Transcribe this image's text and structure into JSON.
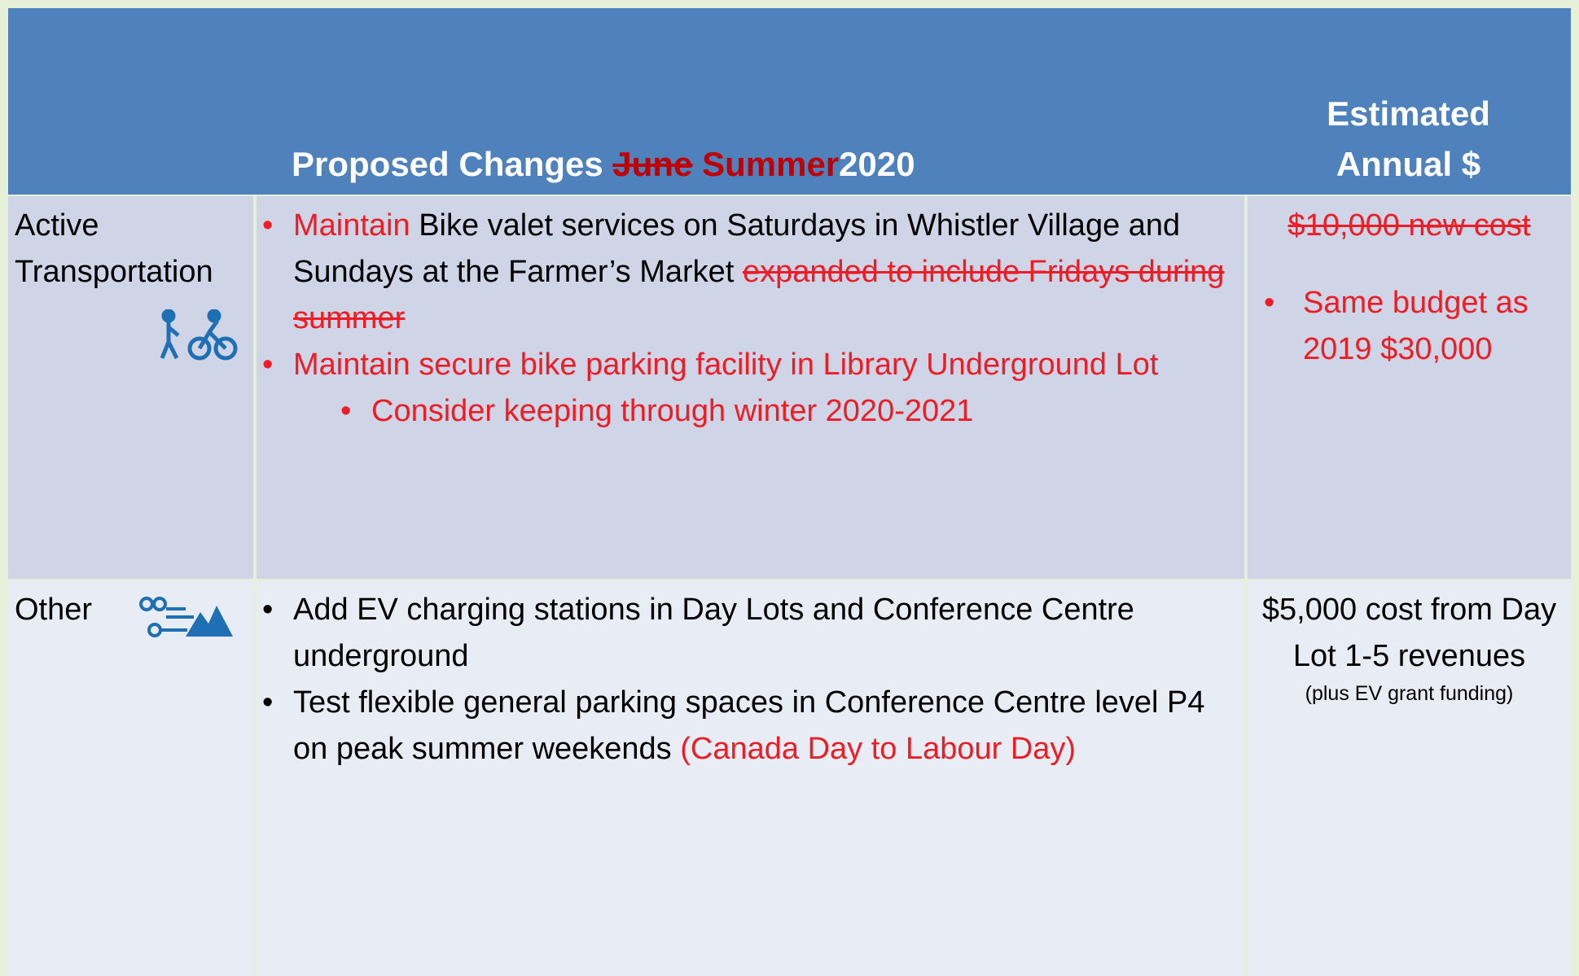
{
  "header": {
    "columns": [
      {
        "segments": [
          {
            "text": "Proposed Changes ",
            "color": "#ffffff",
            "strike": false
          },
          {
            "text": "June",
            "color": "#c00000",
            "strike": true
          },
          {
            "text": " Summer",
            "color": "#c00000",
            "strike": false
          },
          {
            "text": "2020",
            "color": "#ffffff",
            "strike": false
          }
        ]
      },
      {
        "segments": [
          {
            "text": "Estimated Annual $",
            "color": "#ffffff",
            "strike": false
          }
        ]
      }
    ]
  },
  "rows": [
    {
      "category": "Active Transportation",
      "bullets": [
        {
          "level": 1,
          "segments": [
            {
              "text": "Maintain",
              "color": "#ee1c25",
              "strike": false
            },
            {
              "text": " Bike valet services on Saturdays in Whistler Village and Sundays at the Farmer’s Market ",
              "color": "#000000",
              "strike": false
            },
            {
              "text": "expanded to include Fridays during summer",
              "color": "#ee1c25",
              "strike": true
            }
          ]
        },
        {
          "level": 1,
          "segments": [
            {
              "text": "Maintain secure bike parking facility in Library Underground Lot",
              "color": "#ee1c25",
              "strike": false
            }
          ]
        },
        {
          "level": 2,
          "segments": [
            {
              "text": "Consider keeping through winter 2020-2021",
              "color": "#ee1c25",
              "strike": false
            }
          ]
        }
      ],
      "cost": [
        {
          "bullet": false,
          "segments": [
            {
              "text": "$10,000 new cost",
              "color": "#ee1c25",
              "strike": true
            }
          ]
        },
        {
          "bullet": true,
          "segments": [
            {
              "text": "Same budget as 2019 $30,000",
              "color": "#ee1c25",
              "strike": false
            }
          ]
        }
      ]
    },
    {
      "category": "Other",
      "bullets": [
        {
          "level": 1,
          "segments": [
            {
              "text": "Add EV charging stations in Day Lots and Conference Centre underground",
              "color": "#000000",
              "strike": false
            }
          ]
        },
        {
          "level": 1,
          "segments": [
            {
              "text": "Test flexible general parking spaces in Conference Centre level P4 on peak summer weekends ",
              "color": "#000000",
              "strike": false
            },
            {
              "text": "(Canada Day to Labour Day)",
              "color": "#ee1c25",
              "strike": false
            }
          ]
        }
      ],
      "cost": [
        {
          "bullet": false,
          "segments": [
            {
              "text": "$5,000 cost from Day Lot 1-5 revenues",
              "color": "#000000",
              "strike": false
            }
          ]
        },
        {
          "bullet": false,
          "small": true,
          "segments": [
            {
              "text": "(plus EV grant funding)",
              "color": "#000000",
              "strike": false
            }
          ]
        }
      ]
    }
  ]
}
